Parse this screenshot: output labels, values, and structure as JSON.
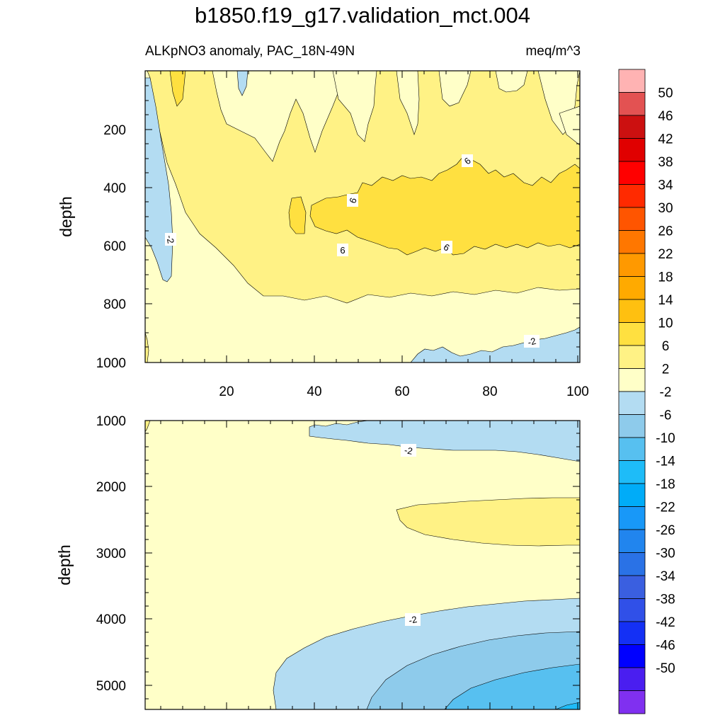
{
  "title": "b1850.f19_g17.validation_mct.004",
  "subtitle_left": "ALKpNO3 anomaly, PAC_18N-49N",
  "subtitle_right": "meq/m^3",
  "chart_data": [
    {
      "type": "contour",
      "panel": "upper",
      "variable": "ALKpNO3 anomaly",
      "region": "PAC_18N-49N",
      "units": "meq/m^3",
      "xlabel": "",
      "ylabel": "depth",
      "xlim": [
        1,
        101
      ],
      "ylim": [
        5,
        1000
      ],
      "y_inverted": true,
      "x_ticks": [
        20,
        40,
        60,
        80,
        100
      ],
      "x_tick_labels": [
        "20",
        "40",
        "60",
        "80",
        "100"
      ],
      "y_ticks": [
        200,
        400,
        600,
        800,
        1000
      ],
      "y_tick_labels": [
        "200",
        "400",
        "600",
        "800",
        "1000"
      ],
      "contour_labels": [
        {
          "text": "-2",
          "x": 7,
          "y": 590
        },
        {
          "text": "6",
          "x": 48,
          "y": 450
        },
        {
          "text": "6",
          "x": 47,
          "y": 615
        },
        {
          "text": "6",
          "x": 75,
          "y": 310
        },
        {
          "text": "6",
          "x": 71,
          "y": 610
        },
        {
          "text": "-2",
          "x": 90,
          "y": 935
        }
      ]
    },
    {
      "type": "contour",
      "panel": "lower",
      "variable": "ALKpNO3 anomaly",
      "region": "PAC_18N-49N",
      "units": "meq/m^3",
      "xlabel": "",
      "ylabel": "depth",
      "xlim": [
        1,
        101
      ],
      "ylim": [
        1000,
        5375
      ],
      "y_inverted": true,
      "y_ticks": [
        1000,
        2000,
        3000,
        4000,
        5000
      ],
      "y_tick_labels": [
        "1000",
        "2000",
        "3000",
        "4000",
        "5000"
      ],
      "contour_labels": [
        {
          "text": "-2",
          "x": 61,
          "y": 1470
        },
        {
          "text": "-2",
          "x": 61,
          "y": 4020
        }
      ]
    }
  ],
  "colorbar": {
    "labels": [
      "50",
      "46",
      "42",
      "38",
      "34",
      "30",
      "26",
      "22",
      "18",
      "14",
      "10",
      "6",
      "2",
      "-2",
      "-6",
      "-10",
      "-14",
      "-18",
      "-22",
      "-26",
      "-30",
      "-34",
      "-38",
      "-42",
      "-46",
      "-50"
    ],
    "colors": [
      "#ffb3b3",
      "#e35252",
      "#cc1010",
      "#e00000",
      "#ff0000",
      "#ff2a00",
      "#ff5500",
      "#ff7700",
      "#ff9900",
      "#ffaa00",
      "#ffc010",
      "#ffe040",
      "#fff285",
      "#ffffc8",
      "#b3dcf2",
      "#8ecbeb",
      "#57c0f0",
      "#1ebcf8",
      "#00acf8",
      "#1898f8",
      "#2185ee",
      "#2a72e6",
      "#3a5fe0",
      "#3050e8",
      "#1430f5",
      "#0000ff",
      "#4a1ef0",
      "#8030f0"
    ]
  }
}
